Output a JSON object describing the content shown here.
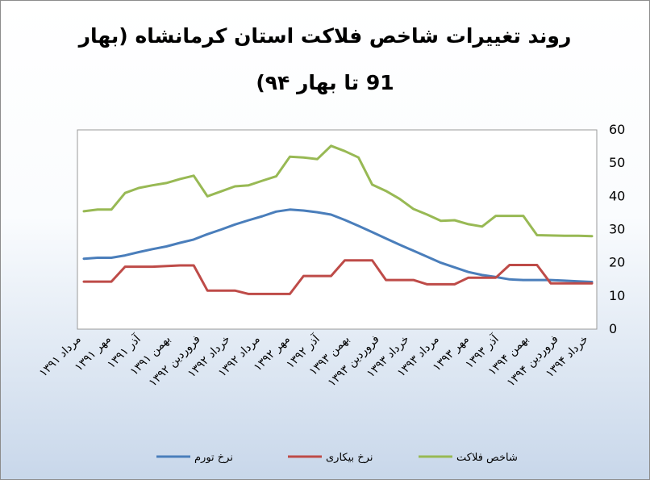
{
  "chart_data": {
    "type": "line",
    "title_line1": "روند تغییرات شاخص فلاکت استان کرمانشاه (بهار",
    "title_line2": "91 تا بهار ۹۴)",
    "ylim": [
      0,
      60
    ],
    "yticks": [
      "0",
      "10",
      "20",
      "30",
      "40",
      "50",
      "60"
    ],
    "y_axis_side": "right",
    "grid": false,
    "legend_position": "bottom",
    "categories": [
      "مرداد ۱۳۹۱",
      "مهر ۱۳۹۱",
      "آذر ۱۳۹۱",
      "بهمن ۱۳۹۱",
      "فروردین ۱۳۹۲",
      "خرداد ۱۳۹۲",
      "مرداد ۱۳۹۲",
      "مهر ۱۳۹۲",
      "آذر ۱۳۹۲",
      "بهمن ۱۳۹۳",
      "فروردین ۱۳۹۳",
      "خرداد ۱۳۹۳",
      "مرداد ۱۳۹۳",
      "مهر ۱۳۹۳",
      "آذر ۱۳۹۳",
      "بهمن ۱۳۹۴",
      "فروردین ۱۳۹۴",
      "خرداد ۱۳۹۴"
    ],
    "x_range": [
      0,
      37
    ],
    "series": [
      {
        "name": "نرخ تورم",
        "color": "#4a7ebb",
        "x": [
          0,
          1,
          2,
          3,
          4,
          5,
          6,
          7,
          8,
          9,
          10,
          11,
          12,
          13,
          14,
          15,
          16,
          17,
          18,
          19,
          20,
          21,
          22,
          23,
          24,
          25,
          26,
          27,
          28,
          29,
          30,
          31,
          32,
          33,
          34,
          35,
          36,
          37
        ],
        "values": [
          21.2,
          21.5,
          21.5,
          22.2,
          23.2,
          24.1,
          24.9,
          26.0,
          27.0,
          28.6,
          30.0,
          31.5,
          32.8,
          34.0,
          35.4,
          36.0,
          35.7,
          35.2,
          34.5,
          32.9,
          31.1,
          29.2,
          27.3,
          25.4,
          23.6,
          21.8,
          20.0,
          18.6,
          17.2,
          16.3,
          15.7,
          15.0,
          14.8,
          14.8,
          14.8,
          14.6,
          14.4,
          14.2
        ]
      },
      {
        "name": "نرخ بیکاری",
        "color": "#be4b48",
        "x": [
          0,
          2,
          3,
          5,
          7,
          8,
          9,
          11,
          12,
          13,
          15,
          16,
          17,
          18,
          19,
          20,
          21,
          22,
          23,
          24,
          25,
          26,
          27,
          28,
          29,
          30,
          31,
          32,
          33,
          34,
          35,
          36,
          37
        ],
        "values": [
          14.3,
          14.3,
          18.8,
          18.8,
          19.2,
          19.2,
          11.6,
          11.6,
          10.6,
          10.6,
          10.6,
          16.0,
          16.0,
          16.0,
          20.7,
          20.7,
          20.7,
          14.8,
          14.8,
          14.8,
          13.5,
          13.5,
          13.5,
          15.5,
          15.5,
          15.5,
          19.3,
          19.3,
          19.3,
          13.8,
          13.8,
          13.8,
          13.8
        ]
      },
      {
        "name": "شاخص فلاکت",
        "color": "#98b954",
        "x": [
          0,
          1,
          2,
          3,
          4,
          5,
          6,
          7,
          8,
          9,
          10,
          11,
          12,
          13,
          14,
          15,
          16,
          17,
          18,
          19,
          20,
          21,
          22,
          23,
          24,
          25,
          26,
          27,
          28,
          29,
          30,
          31,
          32,
          33,
          34,
          35,
          36,
          37
        ],
        "values": [
          35.5,
          36.0,
          36.0,
          41.0,
          42.5,
          43.3,
          44.0,
          45.2,
          46.2,
          40.0,
          41.5,
          43.0,
          43.3,
          44.7,
          46.0,
          51.9,
          51.7,
          51.2,
          55.2,
          53.6,
          51.7,
          43.5,
          41.6,
          39.2,
          36.2,
          34.5,
          32.6,
          32.8,
          31.6,
          30.9,
          34.1,
          34.1,
          34.1,
          28.3,
          28.2,
          28.1,
          28.1,
          28.0
        ]
      }
    ]
  }
}
